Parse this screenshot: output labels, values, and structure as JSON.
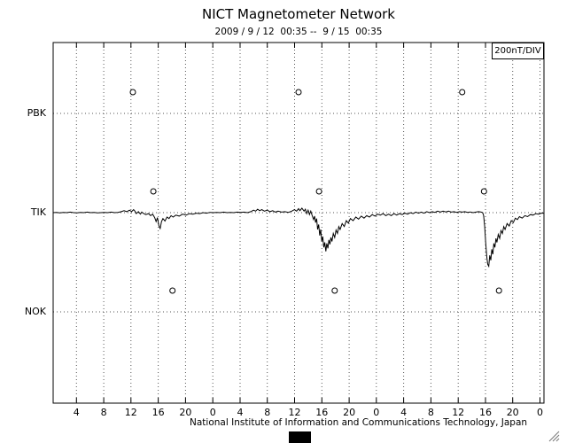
{
  "title": "NICT Magnetometer Network",
  "subtitle": "2009 / 9 / 12  00:35 --  9 / 15  00:35",
  "unit_label": "200nT/DIV",
  "footer": "National Institute of Information and Communications Technology, Japan",
  "colors": {
    "trace": "#000000",
    "grid": "#555555",
    "frame": "#000000",
    "background": "#ffffff"
  },
  "chart_data": {
    "type": "line",
    "title": "NICT Magnetometer Network",
    "subtitle": "2009 / 9 / 12  00:35 -- 9 / 15  00:35",
    "stations": [
      "PBK",
      "TIK",
      "NOK"
    ],
    "scale_nT_per_div": 200,
    "grid": true,
    "x_axis": {
      "start_label": "2009/9/12 00:35",
      "end_label": "2009/9/15 00:35",
      "hours_span": 72,
      "first_tick_hour": 3.417,
      "tick_interval_hours": 4,
      "tick_labels": [
        "4",
        "8",
        "12",
        "16",
        "20",
        "0",
        "4",
        "8",
        "12",
        "16",
        "20",
        "0",
        "4",
        "8",
        "12",
        "16",
        "20",
        "0"
      ]
    },
    "noon_markers": [
      {
        "station": "PBK",
        "hours": [
          11.7,
          36.0,
          60.0
        ]
      },
      {
        "station": "TIK",
        "hours": [
          14.7,
          39.0,
          63.2
        ]
      },
      {
        "station": "NOK",
        "hours": [
          17.5,
          41.3,
          65.4
        ]
      }
    ],
    "series": [
      {
        "name": "TIK",
        "units": "nT (offset from baseline)",
        "points": [
          [
            0,
            0
          ],
          [
            0.5,
            0.5
          ],
          [
            1,
            -0.5
          ],
          [
            1.5,
            0.5
          ],
          [
            2,
            0
          ],
          [
            2.5,
            1
          ],
          [
            3,
            0
          ],
          [
            3.5,
            -0.5
          ],
          [
            4,
            0.5
          ],
          [
            4.5,
            0
          ],
          [
            5,
            1
          ],
          [
            5.5,
            0
          ],
          [
            6,
            0.5
          ],
          [
            6.5,
            -0.5
          ],
          [
            7,
            0
          ],
          [
            7.5,
            0.5
          ],
          [
            8,
            0
          ],
          [
            8.5,
            1
          ],
          [
            9,
            0
          ],
          [
            9.5,
            0.5
          ],
          [
            10,
            2
          ],
          [
            10.4,
            4
          ],
          [
            10.8,
            2
          ],
          [
            11.2,
            5
          ],
          [
            11.5,
            2
          ],
          [
            11.8,
            6
          ],
          [
            12,
            3
          ],
          [
            12.2,
            -2
          ],
          [
            12.5,
            2
          ],
          [
            12.8,
            -3
          ],
          [
            13,
            1
          ],
          [
            13.3,
            -2
          ],
          [
            13.6,
            -4
          ],
          [
            14,
            -2
          ],
          [
            14.3,
            -6
          ],
          [
            14.6,
            -3
          ],
          [
            14.9,
            -10
          ],
          [
            15.1,
            -18
          ],
          [
            15.3,
            -10
          ],
          [
            15.5,
            -26
          ],
          [
            15.7,
            -32
          ],
          [
            15.9,
            -18
          ],
          [
            16.1,
            -12
          ],
          [
            16.4,
            -17
          ],
          [
            16.7,
            -9
          ],
          [
            17,
            -12
          ],
          [
            17.3,
            -6
          ],
          [
            17.6,
            -9
          ],
          [
            18,
            -5
          ],
          [
            18.5,
            -7
          ],
          [
            19,
            -3
          ],
          [
            19.5,
            -5
          ],
          [
            20,
            -2
          ],
          [
            20.5,
            -3
          ],
          [
            21,
            -1
          ],
          [
            21.5,
            -2
          ],
          [
            22,
            0
          ],
          [
            22.5,
            -1
          ],
          [
            23,
            0.5
          ],
          [
            23.5,
            0
          ],
          [
            24,
            0.5
          ],
          [
            24.5,
            0
          ],
          [
            25,
            1
          ],
          [
            25.5,
            0
          ],
          [
            26,
            0.5
          ],
          [
            26.5,
            0
          ],
          [
            27,
            1
          ],
          [
            27.5,
            0.5
          ],
          [
            28,
            1
          ],
          [
            28.5,
            0
          ],
          [
            29,
            2
          ],
          [
            29.4,
            5
          ],
          [
            29.7,
            3
          ],
          [
            30,
            7
          ],
          [
            30.3,
            4
          ],
          [
            30.6,
            6
          ],
          [
            31,
            3
          ],
          [
            31.4,
            5
          ],
          [
            31.8,
            2
          ],
          [
            32.2,
            4
          ],
          [
            32.6,
            1
          ],
          [
            33,
            3
          ],
          [
            33.5,
            1
          ],
          [
            34,
            2
          ],
          [
            34.5,
            0.5
          ],
          [
            35,
            3
          ],
          [
            35.4,
            6
          ],
          [
            35.7,
            3
          ],
          [
            36,
            8
          ],
          [
            36.2,
            4
          ],
          [
            36.5,
            9
          ],
          [
            36.8,
            3
          ],
          [
            37,
            7
          ],
          [
            37.2,
            -2
          ],
          [
            37.4,
            5
          ],
          [
            37.6,
            -4
          ],
          [
            37.8,
            3
          ],
          [
            38,
            -6
          ],
          [
            38.2,
            -14
          ],
          [
            38.35,
            -7
          ],
          [
            38.5,
            -20
          ],
          [
            38.65,
            -12
          ],
          [
            38.8,
            -34
          ],
          [
            38.95,
            -24
          ],
          [
            39.1,
            -46
          ],
          [
            39.25,
            -34
          ],
          [
            39.4,
            -58
          ],
          [
            39.55,
            -48
          ],
          [
            39.7,
            -70
          ],
          [
            39.85,
            -60
          ],
          [
            40,
            -78
          ],
          [
            40.15,
            -62
          ],
          [
            40.3,
            -72
          ],
          [
            40.45,
            -55
          ],
          [
            40.6,
            -64
          ],
          [
            40.75,
            -50
          ],
          [
            40.9,
            -58
          ],
          [
            41.1,
            -42
          ],
          [
            41.3,
            -50
          ],
          [
            41.5,
            -35
          ],
          [
            41.7,
            -42
          ],
          [
            41.9,
            -28
          ],
          [
            42.1,
            -34
          ],
          [
            42.4,
            -22
          ],
          [
            42.7,
            -28
          ],
          [
            43,
            -16
          ],
          [
            43.3,
            -21
          ],
          [
            43.6,
            -12
          ],
          [
            44,
            -16
          ],
          [
            44.4,
            -9
          ],
          [
            44.8,
            -13
          ],
          [
            45.2,
            -7
          ],
          [
            45.6,
            -11
          ],
          [
            46,
            -6
          ],
          [
            46.4,
            -9
          ],
          [
            46.8,
            -4
          ],
          [
            47.2,
            -7
          ],
          [
            47.6,
            -3
          ],
          [
            48,
            -5
          ],
          [
            48.4,
            -2
          ],
          [
            48.8,
            -6
          ],
          [
            49.2,
            -3
          ],
          [
            49.6,
            -6
          ],
          [
            50,
            -2
          ],
          [
            50.4,
            -5
          ],
          [
            50.8,
            -2
          ],
          [
            51.2,
            -4
          ],
          [
            51.6,
            -1
          ],
          [
            52,
            -3
          ],
          [
            52.4,
            0
          ],
          [
            52.8,
            -2
          ],
          [
            53.2,
            1
          ],
          [
            53.6,
            -1
          ],
          [
            54,
            1
          ],
          [
            54.4,
            -1
          ],
          [
            54.8,
            2
          ],
          [
            55.2,
            0
          ],
          [
            55.6,
            2
          ],
          [
            56,
            0.5
          ],
          [
            56.4,
            3
          ],
          [
            56.8,
            1
          ],
          [
            57.2,
            3
          ],
          [
            57.6,
            1.5
          ],
          [
            58,
            3
          ],
          [
            58.4,
            1
          ],
          [
            58.8,
            2
          ],
          [
            59.2,
            0.5
          ],
          [
            59.6,
            2
          ],
          [
            60,
            1
          ],
          [
            60.4,
            2
          ],
          [
            60.8,
            0.5
          ],
          [
            61.2,
            1.5
          ],
          [
            61.6,
            0
          ],
          [
            62,
            1
          ],
          [
            62.4,
            2
          ],
          [
            62.8,
            1
          ],
          [
            63,
            0
          ],
          [
            63.15,
            -6
          ],
          [
            63.3,
            -28
          ],
          [
            63.45,
            -60
          ],
          [
            63.6,
            -88
          ],
          [
            63.75,
            -104
          ],
          [
            63.9,
            -108
          ],
          [
            64.05,
            -86
          ],
          [
            64.2,
            -96
          ],
          [
            64.35,
            -74
          ],
          [
            64.5,
            -84
          ],
          [
            64.65,
            -62
          ],
          [
            64.8,
            -70
          ],
          [
            64.95,
            -52
          ],
          [
            65.1,
            -60
          ],
          [
            65.3,
            -44
          ],
          [
            65.5,
            -52
          ],
          [
            65.7,
            -36
          ],
          [
            65.9,
            -42
          ],
          [
            66.1,
            -28
          ],
          [
            66.3,
            -34
          ],
          [
            66.6,
            -22
          ],
          [
            66.9,
            -27
          ],
          [
            67.2,
            -16
          ],
          [
            67.5,
            -20
          ],
          [
            67.8,
            -11
          ],
          [
            68.1,
            -14
          ],
          [
            68.4,
            -8
          ],
          [
            68.8,
            -11
          ],
          [
            69.2,
            -6
          ],
          [
            69.6,
            -8
          ],
          [
            70,
            -4
          ],
          [
            70.4,
            -5
          ],
          [
            70.8,
            -2
          ],
          [
            71.2,
            -3
          ],
          [
            71.6,
            -1
          ],
          [
            72,
            -1
          ]
        ]
      }
    ]
  }
}
